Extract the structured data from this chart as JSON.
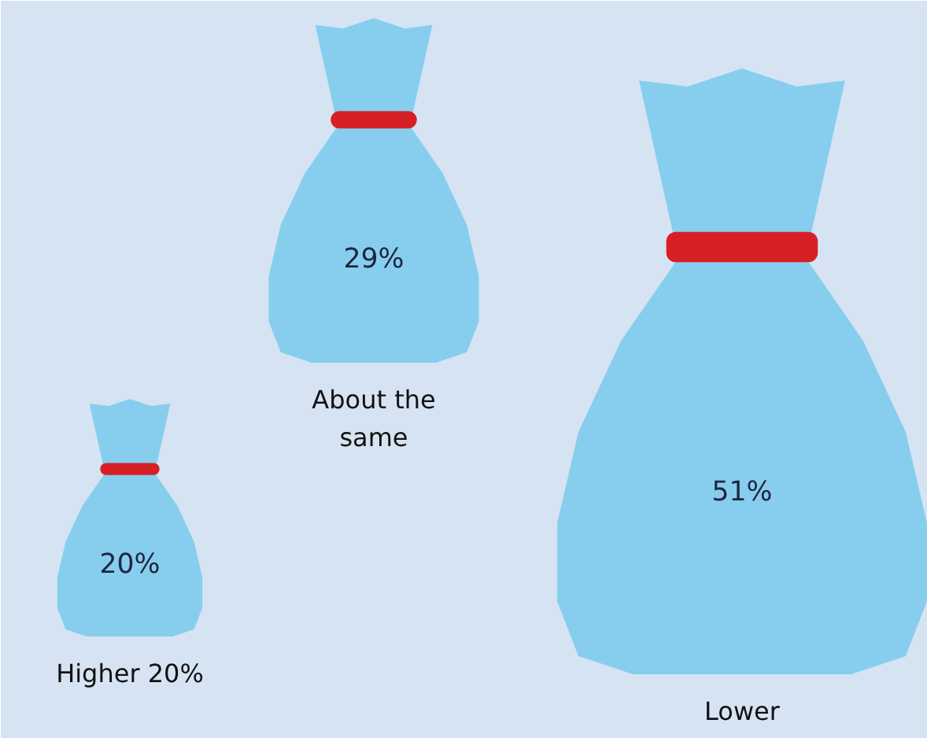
{
  "chart_data": {
    "type": "other",
    "categories": [
      "Higher 20%",
      "About the same",
      "Lower"
    ],
    "values": [
      20,
      29,
      51
    ],
    "value_labels": [
      "20%",
      "29%",
      "51%"
    ],
    "colors": [
      "#87ceee",
      "#87ceee",
      "#87ceee"
    ]
  }
}
